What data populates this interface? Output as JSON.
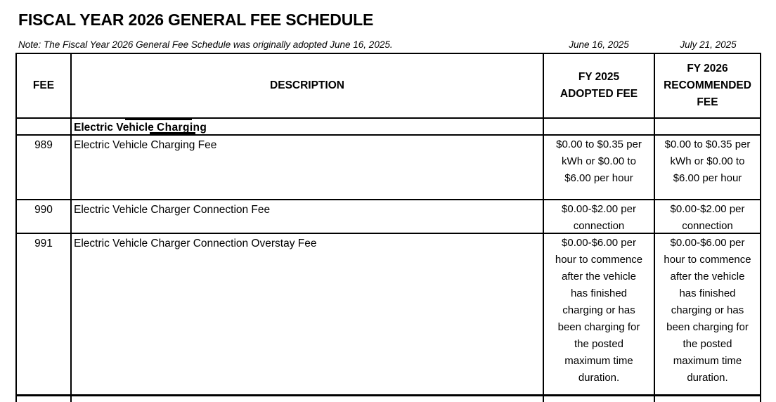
{
  "page": {
    "title": "FISCAL YEAR 2026 GENERAL FEE SCHEDULE",
    "note": "Note: The Fiscal Year 2026 General Fee Schedule was originally adopted June 16, 2025.",
    "adopted_date": "June 16, 2025",
    "recommended_date": "July 21, 2025"
  },
  "table": {
    "headers": {
      "fee": "FEE",
      "description": "DESCRIPTION",
      "fy2025": "FY 2025\nADOPTED FEE",
      "fy2026": "FY 2026\nRECOMMENDED\nFEE"
    },
    "section": {
      "label_prefix": "Electric Vehicle ",
      "label_marked": "Charging"
    },
    "rows": [
      {
        "fee": "989",
        "description": "Electric Vehicle Charging Fee",
        "fy2025": "$0.00 to $0.35 per\nkWh or $0.00 to\n$6.00 per hour",
        "fy2026": "$0.00 to $0.35 per\nkWh or $0.00 to\n$6.00 per hour"
      },
      {
        "fee": "990",
        "description": "Electric Vehicle Charger Connection Fee",
        "fy2025": "$0.00-$2.00 per\nconnection",
        "fy2026": "$0.00-$2.00 per\nconnection"
      },
      {
        "fee": "991",
        "description": "Electric Vehicle Charger Connection Overstay Fee",
        "fy2025": "$0.00-$6.00 per\nhour to commence\nafter the vehicle\nhas finished\ncharging or has\nbeen charging for\nthe posted\nmaximum time\nduration.",
        "fy2026": "$0.00-$6.00 per\nhour to commence\nafter the vehicle\nhas finished\ncharging or has\nbeen charging for\nthe posted\nmaximum time\nduration."
      }
    ]
  },
  "colors": {
    "text": "#000000",
    "border": "#000000",
    "background": "#ffffff"
  }
}
